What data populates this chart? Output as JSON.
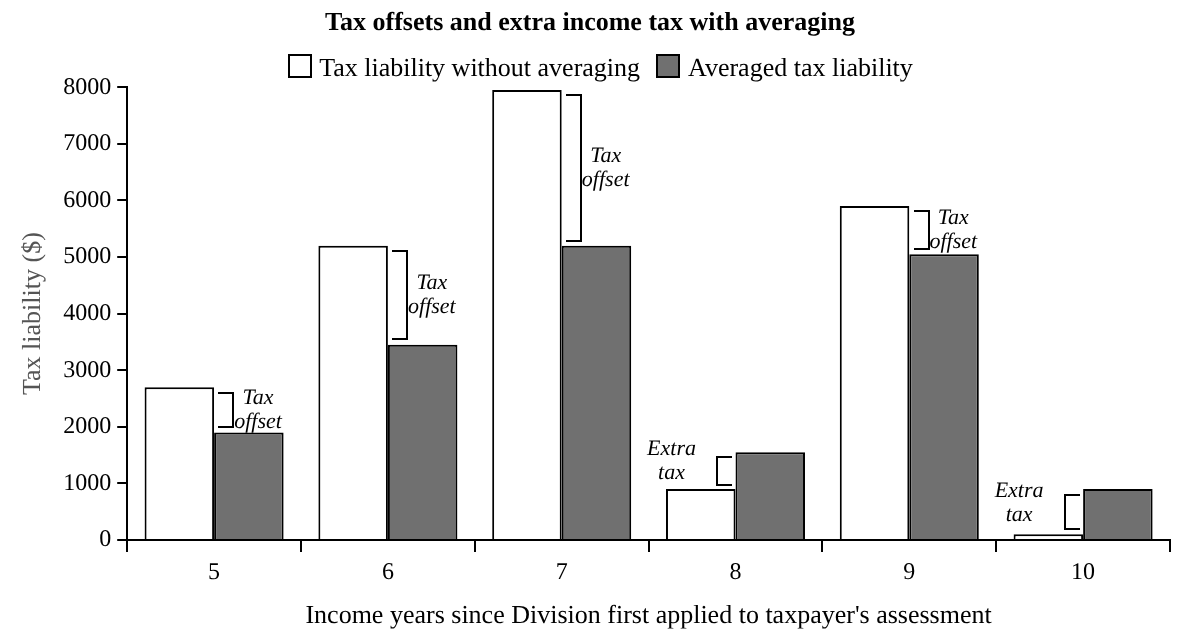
{
  "chart_data": {
    "type": "bar",
    "title": "Tax offsets and extra income tax with averaging",
    "xlabel": "Income years since Division first applied to taxpayer's assessment",
    "ylabel": "Tax liability ($)",
    "categories": [
      "5",
      "6",
      "7",
      "8",
      "9",
      "10"
    ],
    "series": [
      {
        "name": "Tax liability without averaging",
        "color": "#ffffff",
        "values": [
          2700,
          5200,
          7950,
          900,
          5900,
          100
        ]
      },
      {
        "name": "Averaged tax liability",
        "color": "#707070",
        "values": [
          1900,
          3450,
          5200,
          1550,
          5050,
          900
        ]
      }
    ],
    "ylim": [
      0,
      8000
    ],
    "yticks": [
      0,
      1000,
      2000,
      3000,
      4000,
      5000,
      6000,
      7000,
      8000
    ],
    "grid": false,
    "legend": "top",
    "annotations": [
      {
        "text": "Tax offset",
        "x": "5",
        "y": 2300
      },
      {
        "text": "Tax offset",
        "x": "6",
        "y": 4325
      },
      {
        "text": "Tax offset",
        "x": "7",
        "y": 6575
      },
      {
        "text": "Extra tax",
        "x": "8",
        "y": 1400
      },
      {
        "text": "Tax offset",
        "x": "9",
        "y": 5475
      },
      {
        "text": "Extra tax",
        "x": "10",
        "y": 650
      }
    ]
  }
}
